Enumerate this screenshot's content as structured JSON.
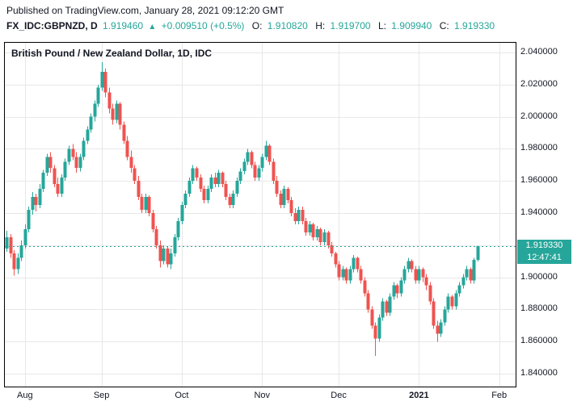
{
  "header": {
    "published": "Published on TradingView.com, January 28, 2021 09:12:20 GMT",
    "symbol": "FX_IDC:GBPNZD, D",
    "last": "1.919460",
    "arrow": "▲",
    "change": "+0.009510 (+0.5%)",
    "o_label": "O:",
    "o": "1.910820",
    "h_label": "H:",
    "h": "1.919700",
    "l_label": "L:",
    "l": "1.909940",
    "c_label": "C:",
    "c": "1.919330"
  },
  "chart_data": {
    "type": "candlestick",
    "title": "British Pound / New Zealand Dollar, 1D, IDC",
    "legend_position": "top-left",
    "grid": true,
    "ylim": [
      1.832,
      2.046
    ],
    "slots": 140,
    "last_price": 1.91933,
    "last_price_label": "1.919330",
    "countdown": "12:47:41",
    "colors": {
      "up": "#26a69a",
      "down": "#ef5350",
      "price_line": "#26a69a",
      "grid": "#e8e8ea"
    },
    "y_ticks": [
      {
        "price": 2.04,
        "label": "2.040000"
      },
      {
        "price": 2.02,
        "label": "2.020000"
      },
      {
        "price": 2.0,
        "label": "2.000000"
      },
      {
        "price": 1.98,
        "label": "1.980000"
      },
      {
        "price": 1.96,
        "label": "1.960000"
      },
      {
        "price": 1.94,
        "label": "1.940000"
      },
      {
        "price": 1.92,
        "label": "1.920000"
      },
      {
        "price": 1.9,
        "label": "1.900000"
      },
      {
        "price": 1.88,
        "label": "1.880000"
      },
      {
        "price": 1.86,
        "label": "1.860000"
      },
      {
        "price": 1.84,
        "label": "1.840000"
      }
    ],
    "x_ticks": [
      {
        "label": "Aug",
        "slot": 5,
        "bold": false
      },
      {
        "label": "Sep",
        "slot": 26,
        "bold": false
      },
      {
        "label": "Oct",
        "slot": 48,
        "bold": false
      },
      {
        "label": "Nov",
        "slot": 70,
        "bold": false
      },
      {
        "label": "Dec",
        "slot": 91,
        "bold": false
      },
      {
        "label": "2021",
        "slot": 113,
        "bold": true
      },
      {
        "label": "Feb",
        "slot": 135,
        "bold": false
      }
    ],
    "candles": [
      [
        1.918,
        1.929,
        1.916,
        1.925
      ],
      [
        1.925,
        1.927,
        1.912,
        1.915
      ],
      [
        1.915,
        1.917,
        1.901,
        1.905
      ],
      [
        1.905,
        1.915,
        1.902,
        1.912
      ],
      [
        1.912,
        1.923,
        1.91,
        1.92
      ],
      [
        1.92,
        1.933,
        1.918,
        1.93
      ],
      [
        1.93,
        1.944,
        1.928,
        1.942
      ],
      [
        1.942,
        1.953,
        1.939,
        1.95
      ],
      [
        1.95,
        1.952,
        1.941,
        1.945
      ],
      [
        1.945,
        1.958,
        1.943,
        1.955
      ],
      [
        1.955,
        1.967,
        1.953,
        1.965
      ],
      [
        1.965,
        1.977,
        1.963,
        1.975
      ],
      [
        1.975,
        1.978,
        1.965,
        1.968
      ],
      [
        1.968,
        1.97,
        1.956,
        1.958
      ],
      [
        1.958,
        1.962,
        1.95,
        1.952
      ],
      [
        1.952,
        1.964,
        1.95,
        1.962
      ],
      [
        1.962,
        1.974,
        1.96,
        1.972
      ],
      [
        1.972,
        1.982,
        1.97,
        1.98
      ],
      [
        1.98,
        1.983,
        1.973,
        1.975
      ],
      [
        1.975,
        1.978,
        1.965,
        1.968
      ],
      [
        1.968,
        1.977,
        1.966,
        1.975
      ],
      [
        1.975,
        1.987,
        1.973,
        1.985
      ],
      [
        1.985,
        1.994,
        1.983,
        1.992
      ],
      [
        1.992,
        2.002,
        1.99,
        2.0
      ],
      [
        2.0,
        2.01,
        1.997,
        2.008
      ],
      [
        2.008,
        2.02,
        2.006,
        2.018
      ],
      [
        2.018,
        2.034,
        2.016,
        2.028
      ],
      [
        2.028,
        2.03,
        2.012,
        2.015
      ],
      [
        2.015,
        2.018,
        2.002,
        2.005
      ],
      [
        2.005,
        2.008,
        1.995,
        1.998
      ],
      [
        1.998,
        2.01,
        1.996,
        2.008
      ],
      [
        2.008,
        2.009,
        1.992,
        1.995
      ],
      [
        1.995,
        1.997,
        1.983,
        1.985
      ],
      [
        1.985,
        1.988,
        1.973,
        1.975
      ],
      [
        1.975,
        1.979,
        1.965,
        1.968
      ],
      [
        1.968,
        1.97,
        1.958,
        1.96
      ],
      [
        1.96,
        1.963,
        1.948,
        1.95
      ],
      [
        1.95,
        1.952,
        1.94,
        1.942
      ],
      [
        1.942,
        1.952,
        1.94,
        1.95
      ],
      [
        1.95,
        1.951,
        1.938,
        1.94
      ],
      [
        1.94,
        1.942,
        1.928,
        1.93
      ],
      [
        1.93,
        1.932,
        1.918,
        1.92
      ],
      [
        1.92,
        1.923,
        1.906,
        1.91
      ],
      [
        1.91,
        1.92,
        1.908,
        1.918
      ],
      [
        1.918,
        1.919,
        1.906,
        1.908
      ],
      [
        1.908,
        1.918,
        1.905,
        1.915
      ],
      [
        1.915,
        1.927,
        1.913,
        1.925
      ],
      [
        1.925,
        1.937,
        1.923,
        1.935
      ],
      [
        1.935,
        1.947,
        1.933,
        1.945
      ],
      [
        1.945,
        1.954,
        1.943,
        1.952
      ],
      [
        1.952,
        1.962,
        1.95,
        1.96
      ],
      [
        1.96,
        1.97,
        1.958,
        1.968
      ],
      [
        1.968,
        1.969,
        1.96,
        1.962
      ],
      [
        1.962,
        1.964,
        1.953,
        1.955
      ],
      [
        1.955,
        1.957,
        1.946,
        1.948
      ],
      [
        1.948,
        1.957,
        1.946,
        1.955
      ],
      [
        1.955,
        1.964,
        1.953,
        1.962
      ],
      [
        1.962,
        1.965,
        1.956,
        1.958
      ],
      [
        1.958,
        1.967,
        1.956,
        1.965
      ],
      [
        1.965,
        1.966,
        1.956,
        1.958
      ],
      [
        1.958,
        1.96,
        1.948,
        1.95
      ],
      [
        1.95,
        1.952,
        1.943,
        1.945
      ],
      [
        1.945,
        1.954,
        1.943,
        1.952
      ],
      [
        1.952,
        1.962,
        1.95,
        1.96
      ],
      [
        1.96,
        1.968,
        1.958,
        1.966
      ],
      [
        1.966,
        1.974,
        1.964,
        1.972
      ],
      [
        1.972,
        1.98,
        1.97,
        1.978
      ],
      [
        1.978,
        1.979,
        1.968,
        1.97
      ],
      [
        1.97,
        1.972,
        1.96,
        1.962
      ],
      [
        1.962,
        1.97,
        1.96,
        1.968
      ],
      [
        1.968,
        1.977,
        1.966,
        1.975
      ],
      [
        1.975,
        1.985,
        1.973,
        1.982
      ],
      [
        1.982,
        1.983,
        1.97,
        1.972
      ],
      [
        1.972,
        1.974,
        1.958,
        1.96
      ],
      [
        1.96,
        1.963,
        1.95,
        1.952
      ],
      [
        1.952,
        1.954,
        1.943,
        1.945
      ],
      [
        1.945,
        1.957,
        1.943,
        1.955
      ],
      [
        1.955,
        1.956,
        1.946,
        1.948
      ],
      [
        1.948,
        1.95,
        1.938,
        1.94
      ],
      [
        1.94,
        1.943,
        1.933,
        1.935
      ],
      [
        1.935,
        1.944,
        1.933,
        1.942
      ],
      [
        1.942,
        1.944,
        1.933,
        1.935
      ],
      [
        1.935,
        1.937,
        1.926,
        1.928
      ],
      [
        1.928,
        1.935,
        1.926,
        1.933
      ],
      [
        1.933,
        1.934,
        1.923,
        1.925
      ],
      [
        1.925,
        1.932,
        1.923,
        1.93
      ],
      [
        1.93,
        1.931,
        1.92,
        1.922
      ],
      [
        1.922,
        1.93,
        1.92,
        1.928
      ],
      [
        1.928,
        1.929,
        1.918,
        1.92
      ],
      [
        1.92,
        1.922,
        1.913,
        1.915
      ],
      [
        1.915,
        1.916,
        1.906,
        1.908
      ],
      [
        1.908,
        1.91,
        1.898,
        1.9
      ],
      [
        1.9,
        1.907,
        1.898,
        1.905
      ],
      [
        1.905,
        1.906,
        1.896,
        1.898
      ],
      [
        1.898,
        1.907,
        1.896,
        1.905
      ],
      [
        1.905,
        1.914,
        1.903,
        1.912
      ],
      [
        1.912,
        1.913,
        1.903,
        1.905
      ],
      [
        1.905,
        1.907,
        1.896,
        1.898
      ],
      [
        1.898,
        1.9,
        1.888,
        1.89
      ],
      [
        1.89,
        1.892,
        1.878,
        1.88
      ],
      [
        1.88,
        1.882,
        1.868,
        1.87
      ],
      [
        1.87,
        1.872,
        1.851,
        1.862
      ],
      [
        1.862,
        1.877,
        1.86,
        1.875
      ],
      [
        1.875,
        1.887,
        1.873,
        1.885
      ],
      [
        1.885,
        1.886,
        1.876,
        1.878
      ],
      [
        1.878,
        1.89,
        1.876,
        1.888
      ],
      [
        1.888,
        1.897,
        1.886,
        1.895
      ],
      [
        1.895,
        1.896,
        1.887,
        1.89
      ],
      [
        1.89,
        1.9,
        1.888,
        1.898
      ],
      [
        1.898,
        1.907,
        1.896,
        1.905
      ],
      [
        1.905,
        1.912,
        1.903,
        1.91
      ],
      [
        1.91,
        1.911,
        1.903,
        1.905
      ],
      [
        1.905,
        1.907,
        1.896,
        1.898
      ],
      [
        1.898,
        1.907,
        1.896,
        1.905
      ],
      [
        1.905,
        1.906,
        1.897,
        1.9
      ],
      [
        1.9,
        1.902,
        1.892,
        1.895
      ],
      [
        1.895,
        1.897,
        1.883,
        1.885
      ],
      [
        1.885,
        1.887,
        1.868,
        1.87
      ],
      [
        1.87,
        1.873,
        1.86,
        1.865
      ],
      [
        1.865,
        1.874,
        1.863,
        1.872
      ],
      [
        1.872,
        1.882,
        1.87,
        1.88
      ],
      [
        1.88,
        1.89,
        1.878,
        1.888
      ],
      [
        1.888,
        1.889,
        1.88,
        1.882
      ],
      [
        1.882,
        1.892,
        1.88,
        1.89
      ],
      [
        1.89,
        1.897,
        1.888,
        1.895
      ],
      [
        1.895,
        1.902,
        1.893,
        1.9
      ],
      [
        1.9,
        1.907,
        1.898,
        1.905
      ],
      [
        1.905,
        1.906,
        1.896,
        1.898
      ],
      [
        1.898,
        1.912,
        1.896,
        1.9108
      ],
      [
        1.91082,
        1.9197,
        1.90994,
        1.91933
      ]
    ]
  }
}
